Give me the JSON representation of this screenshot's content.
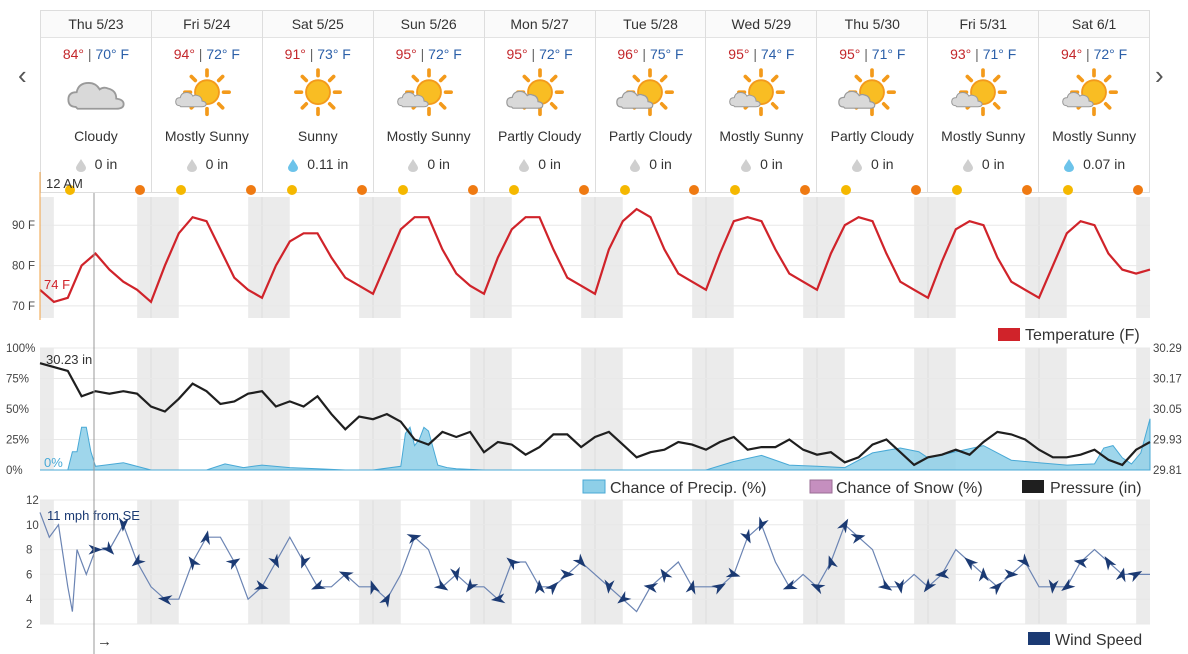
{
  "nav": {
    "prev": "‹",
    "next": "›"
  },
  "days": [
    {
      "label": "Thu 5/23",
      "hi": "84°",
      "lo": "70° F",
      "condition": "Cloudy",
      "icon": "cloudy-icon",
      "precip": "0 in",
      "rain": false
    },
    {
      "label": "Fri 5/24",
      "hi": "94°",
      "lo": "72° F",
      "condition": "Mostly Sunny",
      "icon": "mostly-sunny-icon",
      "precip": "0 in",
      "rain": false
    },
    {
      "label": "Sat 5/25",
      "hi": "91°",
      "lo": "73° F",
      "condition": "Sunny",
      "icon": "sunny-icon",
      "precip": "0.11 in",
      "rain": true
    },
    {
      "label": "Sun 5/26",
      "hi": "95°",
      "lo": "72° F",
      "condition": "Mostly Sunny",
      "icon": "mostly-sunny-icon",
      "precip": "0 in",
      "rain": false
    },
    {
      "label": "Mon 5/27",
      "hi": "95°",
      "lo": "72° F",
      "condition": "Partly Cloudy",
      "icon": "partly-cloudy-icon",
      "precip": "0 in",
      "rain": false
    },
    {
      "label": "Tue 5/28",
      "hi": "96°",
      "lo": "75° F",
      "condition": "Partly Cloudy",
      "icon": "partly-cloudy-icon",
      "precip": "0 in",
      "rain": false
    },
    {
      "label": "Wed 5/29",
      "hi": "95°",
      "lo": "74° F",
      "condition": "Mostly Sunny",
      "icon": "mostly-sunny-icon",
      "precip": "0 in",
      "rain": false
    },
    {
      "label": "Thu 5/30",
      "hi": "95°",
      "lo": "71° F",
      "condition": "Partly Cloudy",
      "icon": "partly-cloudy-icon",
      "precip": "0 in",
      "rain": false
    },
    {
      "label": "Fri 5/31",
      "hi": "93°",
      "lo": "71° F",
      "condition": "Mostly Sunny",
      "icon": "mostly-sunny-icon",
      "precip": "0 in",
      "rain": false
    },
    {
      "label": "Sat 6/1",
      "hi": "94°",
      "lo": "72° F",
      "condition": "Mostly Sunny",
      "icon": "mostly-sunny-icon",
      "precip": "0.07 in",
      "rain": true
    }
  ],
  "colors": {
    "temperature": "#d0232a",
    "precip": "#8ecfe8",
    "precip_edge": "#48a9d6",
    "snow": "#c58fbf",
    "pressure": "#1f1f1f",
    "wind": "#1b3a73",
    "night_band": "#ebebeb",
    "hi": "#c3272b",
    "lo": "#2b5fa8"
  },
  "cursor_time": "12 AM",
  "arrow": "→",
  "chart_data": [
    {
      "type": "line",
      "name": "temperature",
      "ylabels": [
        "90 F",
        "80 F",
        "70 F"
      ],
      "yvalues": [
        90,
        80,
        70
      ],
      "ylim": [
        67,
        97
      ],
      "readout": "74 F",
      "legend": [
        "Temperature (F)"
      ],
      "series": [
        {
          "name": "Temperature (F)",
          "x": [
            0,
            3,
            6,
            9,
            12,
            15,
            18,
            21,
            24,
            27,
            30,
            33,
            36,
            39,
            42,
            45,
            48,
            51,
            54,
            57,
            60,
            63,
            66,
            69,
            72,
            75,
            78,
            81,
            84,
            87,
            90,
            93,
            96,
            99,
            102,
            105,
            108,
            111,
            114,
            117,
            120,
            123,
            126,
            129,
            132,
            135,
            138,
            141,
            144,
            147,
            150,
            153,
            156,
            159,
            162,
            165,
            168,
            171,
            174,
            177,
            180,
            183,
            186,
            189,
            192,
            195,
            198,
            201,
            204,
            207,
            210,
            213,
            216,
            219,
            222,
            225,
            228,
            231,
            234,
            237,
            240
          ],
          "values": [
            74,
            71,
            72,
            80,
            83,
            79,
            76,
            74,
            71,
            80,
            88,
            92,
            91,
            84,
            77,
            74,
            72,
            80,
            86,
            88,
            88,
            82,
            77,
            75,
            73,
            81,
            89,
            92,
            92,
            84,
            78,
            75,
            73,
            82,
            89,
            92,
            92,
            84,
            77,
            75,
            73,
            84,
            91,
            94,
            92,
            84,
            78,
            76,
            74,
            83,
            91,
            92,
            91,
            84,
            78,
            76,
            74,
            83,
            90,
            92,
            91,
            83,
            76,
            74,
            72,
            81,
            89,
            91,
            90,
            82,
            76,
            74,
            72,
            80,
            88,
            91,
            90,
            83,
            79,
            78,
            79
          ]
        }
      ]
    },
    {
      "type": "area",
      "name": "precip-pressure",
      "ylabels": [
        "100%",
        "75%",
        "50%",
        "25%",
        "0%"
      ],
      "yvalues": [
        100,
        75,
        50,
        25,
        0
      ],
      "ylim": [
        0,
        100
      ],
      "y2labels": [
        "30.29",
        "30.17",
        "30.05",
        "29.93",
        "29.81"
      ],
      "y2values": [
        30.29,
        30.17,
        30.05,
        29.93,
        29.81
      ],
      "y2lim": [
        29.81,
        30.29
      ],
      "readout_pressure": "30.23 in",
      "readout_precip": "0%",
      "legend": [
        "Chance of Precip. (%)",
        "Chance of Snow (%)",
        "Pressure (in)"
      ],
      "series": [
        {
          "name": "Chance of Precip. (%)",
          "x": [
            0,
            6,
            7,
            8,
            9,
            10,
            11,
            12,
            14,
            18,
            24,
            36,
            40,
            44,
            48,
            54,
            60,
            66,
            72,
            78,
            79,
            80,
            81,
            82,
            83,
            84,
            86,
            88,
            90,
            96,
            102,
            108,
            120,
            132,
            144,
            150,
            156,
            162,
            168,
            174,
            180,
            186,
            190,
            192,
            198,
            204,
            210,
            216,
            222,
            228,
            230,
            232,
            234,
            236,
            238,
            240
          ],
          "values": [
            0,
            0,
            15,
            15,
            35,
            35,
            15,
            3,
            4,
            6,
            0,
            0,
            5,
            2,
            4,
            2,
            1,
            0,
            0,
            3,
            30,
            35,
            20,
            25,
            35,
            32,
            4,
            2,
            1,
            0,
            0,
            0,
            0,
            0,
            0,
            7,
            12,
            4,
            3,
            2,
            14,
            18,
            15,
            10,
            15,
            20,
            8,
            6,
            4,
            5,
            18,
            20,
            10,
            5,
            14,
            42
          ]
        },
        {
          "name": "Chance of Snow (%)",
          "x": [
            0,
            240
          ],
          "values": [
            0,
            0
          ]
        },
        {
          "name": "Pressure (in)",
          "x": [
            0,
            6,
            9,
            12,
            15,
            18,
            21,
            24,
            27,
            30,
            33,
            36,
            39,
            42,
            45,
            48,
            51,
            54,
            57,
            60,
            63,
            66,
            69,
            72,
            75,
            78,
            81,
            84,
            87,
            90,
            93,
            96,
            99,
            102,
            105,
            108,
            111,
            114,
            117,
            120,
            123,
            126,
            129,
            132,
            135,
            138,
            141,
            144,
            147,
            150,
            153,
            156,
            159,
            162,
            165,
            168,
            171,
            174,
            177,
            180,
            183,
            186,
            189,
            192,
            195,
            198,
            201,
            204,
            207,
            210,
            213,
            216,
            219,
            222,
            225,
            228,
            231,
            234,
            237,
            240
          ],
          "values": [
            30.23,
            30.2,
            30.1,
            30.12,
            30.11,
            30.12,
            30.11,
            30.06,
            30.04,
            30.09,
            30.15,
            30.12,
            30.07,
            30.08,
            30.11,
            30.12,
            30.06,
            30.08,
            30.06,
            30.1,
            30.03,
            29.97,
            30.02,
            30.01,
            30.03,
            30.0,
            29.93,
            29.91,
            29.96,
            29.94,
            29.96,
            29.88,
            29.92,
            29.91,
            29.87,
            29.9,
            29.95,
            29.95,
            29.9,
            29.94,
            29.96,
            29.91,
            29.86,
            29.88,
            29.89,
            29.92,
            29.91,
            29.89,
            29.92,
            29.94,
            29.89,
            29.9,
            29.9,
            29.93,
            29.89,
            29.87,
            29.88,
            29.84,
            29.86,
            29.91,
            29.93,
            29.88,
            29.83,
            29.86,
            29.87,
            29.89,
            29.87,
            29.92,
            29.96,
            29.95,
            29.93,
            29.89,
            29.86,
            29.86,
            29.87,
            29.89,
            29.85,
            29.83,
            29.89,
            29.92
          ]
        }
      ]
    },
    {
      "type": "line",
      "name": "wind",
      "ylabels": [
        "12",
        "10",
        "8",
        "6",
        "4",
        "2"
      ],
      "yvalues": [
        12,
        10,
        8,
        6,
        4,
        2
      ],
      "ylim": [
        2,
        12
      ],
      "readout": "11 mph from SE",
      "legend": [
        "Wind Speed"
      ],
      "series": [
        {
          "name": "Wind Speed",
          "x": [
            0,
            2,
            4,
            6,
            7,
            8,
            9,
            10,
            12,
            15,
            18,
            21,
            24,
            27,
            30,
            33,
            36,
            39,
            42,
            45,
            48,
            51,
            54,
            57,
            60,
            63,
            66,
            69,
            72,
            75,
            78,
            81,
            84,
            87,
            90,
            93,
            96,
            99,
            102,
            105,
            108,
            111,
            114,
            117,
            120,
            123,
            126,
            129,
            132,
            135,
            138,
            141,
            144,
            147,
            150,
            153,
            156,
            159,
            162,
            165,
            168,
            171,
            174,
            177,
            180,
            183,
            186,
            189,
            192,
            195,
            198,
            201,
            204,
            207,
            210,
            213,
            216,
            219,
            222,
            225,
            228,
            231,
            234,
            237,
            240
          ],
          "values": [
            11,
            9,
            10,
            5,
            3,
            8,
            7,
            6,
            8,
            8,
            10,
            7,
            5,
            4,
            4,
            7,
            9,
            9,
            7,
            4,
            5,
            7,
            9,
            7,
            5,
            5,
            6,
            5,
            5,
            4,
            6,
            9,
            8,
            5,
            6,
            5,
            5,
            4,
            7,
            7,
            5,
            5,
            6,
            7,
            6,
            5,
            4,
            3,
            5,
            6,
            7,
            5,
            5,
            5,
            6,
            9,
            10,
            7,
            5,
            6,
            5,
            7,
            10,
            9,
            8,
            5,
            5,
            6,
            5,
            6,
            8,
            7,
            6,
            5,
            6,
            7,
            5,
            5,
            5,
            7,
            8,
            7,
            6,
            6,
            6
          ]
        }
      ],
      "arrow_x": [
        12,
        15,
        18,
        21,
        27,
        33,
        36,
        42,
        48,
        51,
        57,
        60,
        66,
        72,
        75,
        81,
        87,
        90,
        93,
        99,
        102,
        108,
        111,
        114,
        117,
        123,
        126,
        132,
        135,
        141,
        147,
        150,
        153,
        156,
        162,
        168,
        171,
        174,
        177,
        183,
        186,
        192,
        195,
        201,
        204,
        207,
        210,
        213,
        219,
        222,
        225,
        231,
        234,
        237
      ]
    }
  ]
}
